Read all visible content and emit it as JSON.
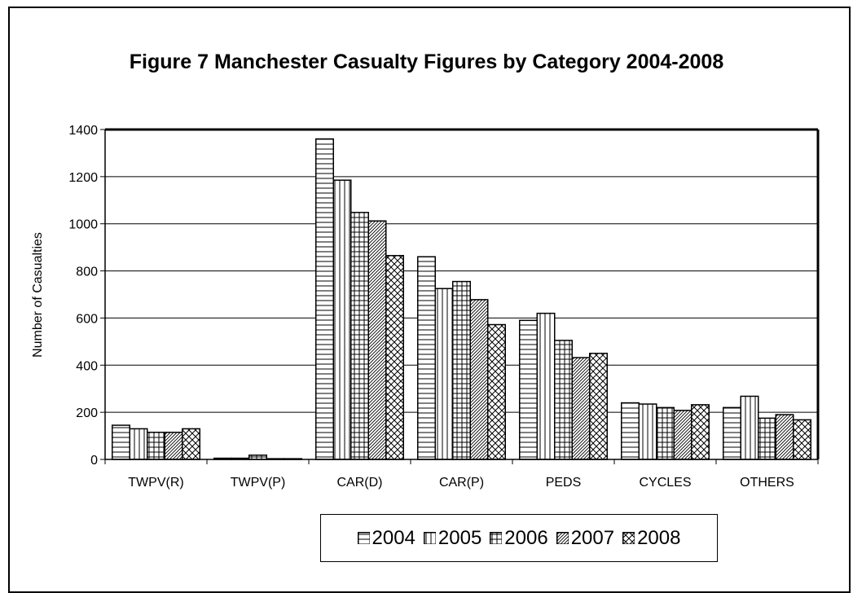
{
  "chart_data": {
    "type": "bar",
    "title": "Figure 7 Manchester Casualty Figures by Category 2004-2008",
    "xlabel": "",
    "ylabel": "Number of Casualties",
    "ylim": [
      0,
      1400
    ],
    "yticks": [
      "0",
      "200",
      "400",
      "600",
      "800",
      "1000",
      "1200",
      "1400"
    ],
    "grid": true,
    "legend_position": "bottom",
    "categories": [
      "TWPV(R)",
      "TWPV(P)",
      "CAR(D)",
      "CAR(P)",
      "PEDS",
      "CYCLES",
      "OTHERS"
    ],
    "series": [
      {
        "name": "2004",
        "pattern": "horizontal-lines",
        "values": [
          145,
          5,
          1360,
          860,
          590,
          240,
          220
        ]
      },
      {
        "name": "2005",
        "pattern": "vertical-lines",
        "values": [
          130,
          5,
          1185,
          725,
          620,
          235,
          268
        ]
      },
      {
        "name": "2006",
        "pattern": "grid",
        "values": [
          115,
          18,
          1048,
          755,
          505,
          220,
          175
        ]
      },
      {
        "name": "2007",
        "pattern": "diagonal-dense",
        "values": [
          115,
          3,
          1012,
          678,
          432,
          208,
          190
        ]
      },
      {
        "name": "2008",
        "pattern": "crosshatch",
        "values": [
          130,
          3,
          865,
          572,
          450,
          232,
          168
        ]
      }
    ],
    "colors": {
      "bars": "#ffffff",
      "stroke": "#000000",
      "grid": "#000000"
    }
  }
}
